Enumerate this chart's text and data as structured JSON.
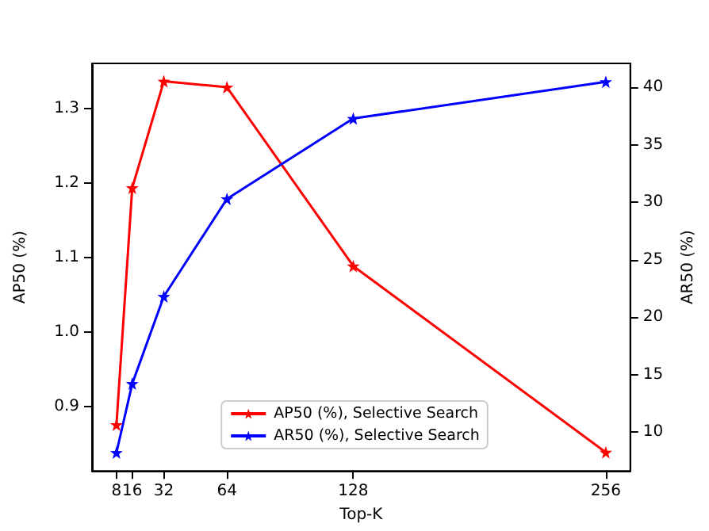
{
  "chart_data": {
    "type": "line",
    "xlabel": "Top-K",
    "ylabel": "AP50 (%)",
    "y2label": "AR50 (%)",
    "x": [
      8,
      16,
      32,
      64,
      128,
      256
    ],
    "series": [
      {
        "name": "AP50 (%), Selective Search",
        "color": "#ff0000",
        "values": [
          0.876,
          1.194,
          1.337,
          1.329,
          1.089,
          0.839
        ]
      },
      {
        "name": "AR50 (%), Selective Search",
        "color": "#0000ff",
        "axis": "y2",
        "values": [
          8.2,
          14.2,
          21.8,
          30.3,
          37.3,
          40.5
        ]
      }
    ],
    "xlim": [
      -4.4,
      268.4
    ],
    "xticks": [
      8,
      16,
      32,
      64,
      128,
      256
    ],
    "ylim": [
      0.814,
      1.361
    ],
    "yticks": [
      0.9,
      {
        "value": 1,
        "label": "1.0"
      },
      1.1,
      1.2,
      1.3
    ],
    "y2lim": [
      6.6,
      42.1
    ],
    "y2ticks": [
      10,
      15,
      20,
      25,
      30,
      35,
      40
    ],
    "legend": "bottom",
    "marker": "star",
    "line_style": "solid",
    "grid": false
  }
}
